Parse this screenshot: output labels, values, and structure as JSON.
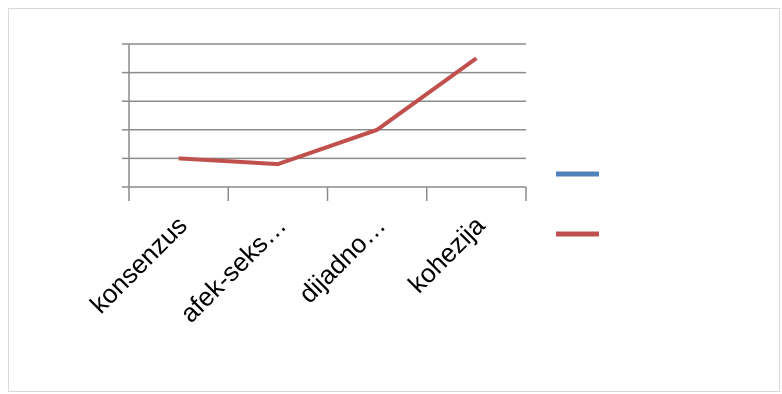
{
  "chart_data": {
    "type": "line",
    "categories": [
      "konsenzus",
      "afek-seks…",
      "dijadno…",
      "kohezija"
    ],
    "series": [
      {
        "values": [
          null,
          null,
          null,
          null
        ],
        "color": "#4f81bd"
      },
      {
        "values": [
          1.0,
          0.8,
          2.0,
          4.5
        ],
        "color": "#c0504d"
      }
    ],
    "ylim": [
      0,
      5
    ],
    "grid": true,
    "legend": "right",
    "title": "",
    "xlabel": "",
    "ylabel": ""
  }
}
